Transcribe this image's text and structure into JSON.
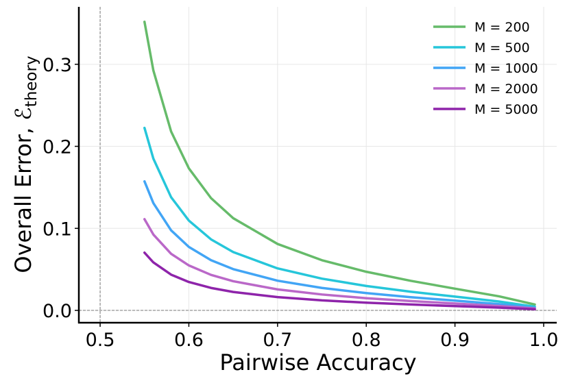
{
  "chart_data": {
    "type": "line",
    "x_label": "Pairwise Accuracy",
    "y_label": "Overall Error, ℰ",
    "y_label_subscript": "theory",
    "x": [
      0.55,
      0.56,
      0.58,
      0.6,
      0.625,
      0.65,
      0.7,
      0.75,
      0.8,
      0.85,
      0.9,
      0.95,
      0.99
    ],
    "series": [
      {
        "name": "M = 200",
        "color": "#66bb6a",
        "values": [
          0.3518,
          0.2925,
          0.2181,
          0.1732,
          0.1369,
          0.1124,
          0.081,
          0.0612,
          0.0471,
          0.0361,
          0.0265,
          0.0171,
          0.0072
        ]
      },
      {
        "name": "M = 500",
        "color": "#26c6da",
        "values": [
          0.2225,
          0.185,
          0.138,
          0.1095,
          0.0866,
          0.0711,
          0.0512,
          0.0387,
          0.0298,
          0.0228,
          0.0168,
          0.0108,
          0.0045
        ]
      },
      {
        "name": "M = 1000",
        "color": "#42a5f5",
        "values": [
          0.1573,
          0.1308,
          0.0976,
          0.0774,
          0.0612,
          0.0503,
          0.0362,
          0.0274,
          0.0211,
          0.0161,
          0.0119,
          0.0077,
          0.0032
        ]
      },
      {
        "name": "M = 2000",
        "color": "#ba68c8",
        "values": [
          0.1112,
          0.0925,
          0.069,
          0.0548,
          0.0433,
          0.0356,
          0.0256,
          0.0194,
          0.0149,
          0.0114,
          0.0084,
          0.0054,
          0.0023
        ]
      },
      {
        "name": "M = 5000",
        "color": "#8e24aa",
        "values": [
          0.0704,
          0.0585,
          0.0436,
          0.0346,
          0.0274,
          0.0225,
          0.0162,
          0.0122,
          0.0094,
          0.0072,
          0.0053,
          0.0034,
          0.0014
        ]
      }
    ],
    "xlim": [
      0.476,
      1.0147
    ],
    "ylim": [
      -0.015,
      0.37
    ],
    "xticks": [
      0.5,
      0.6,
      0.7,
      0.8,
      0.9,
      {
        "value": 1,
        "label": "1.0"
      }
    ],
    "yticks": [
      {
        "value": 0,
        "label": "0.0"
      },
      0.1,
      0.2,
      0.3
    ],
    "grid": true,
    "reference_lines": {
      "x": 0.5,
      "y": 0
    },
    "legend": "upper right"
  }
}
